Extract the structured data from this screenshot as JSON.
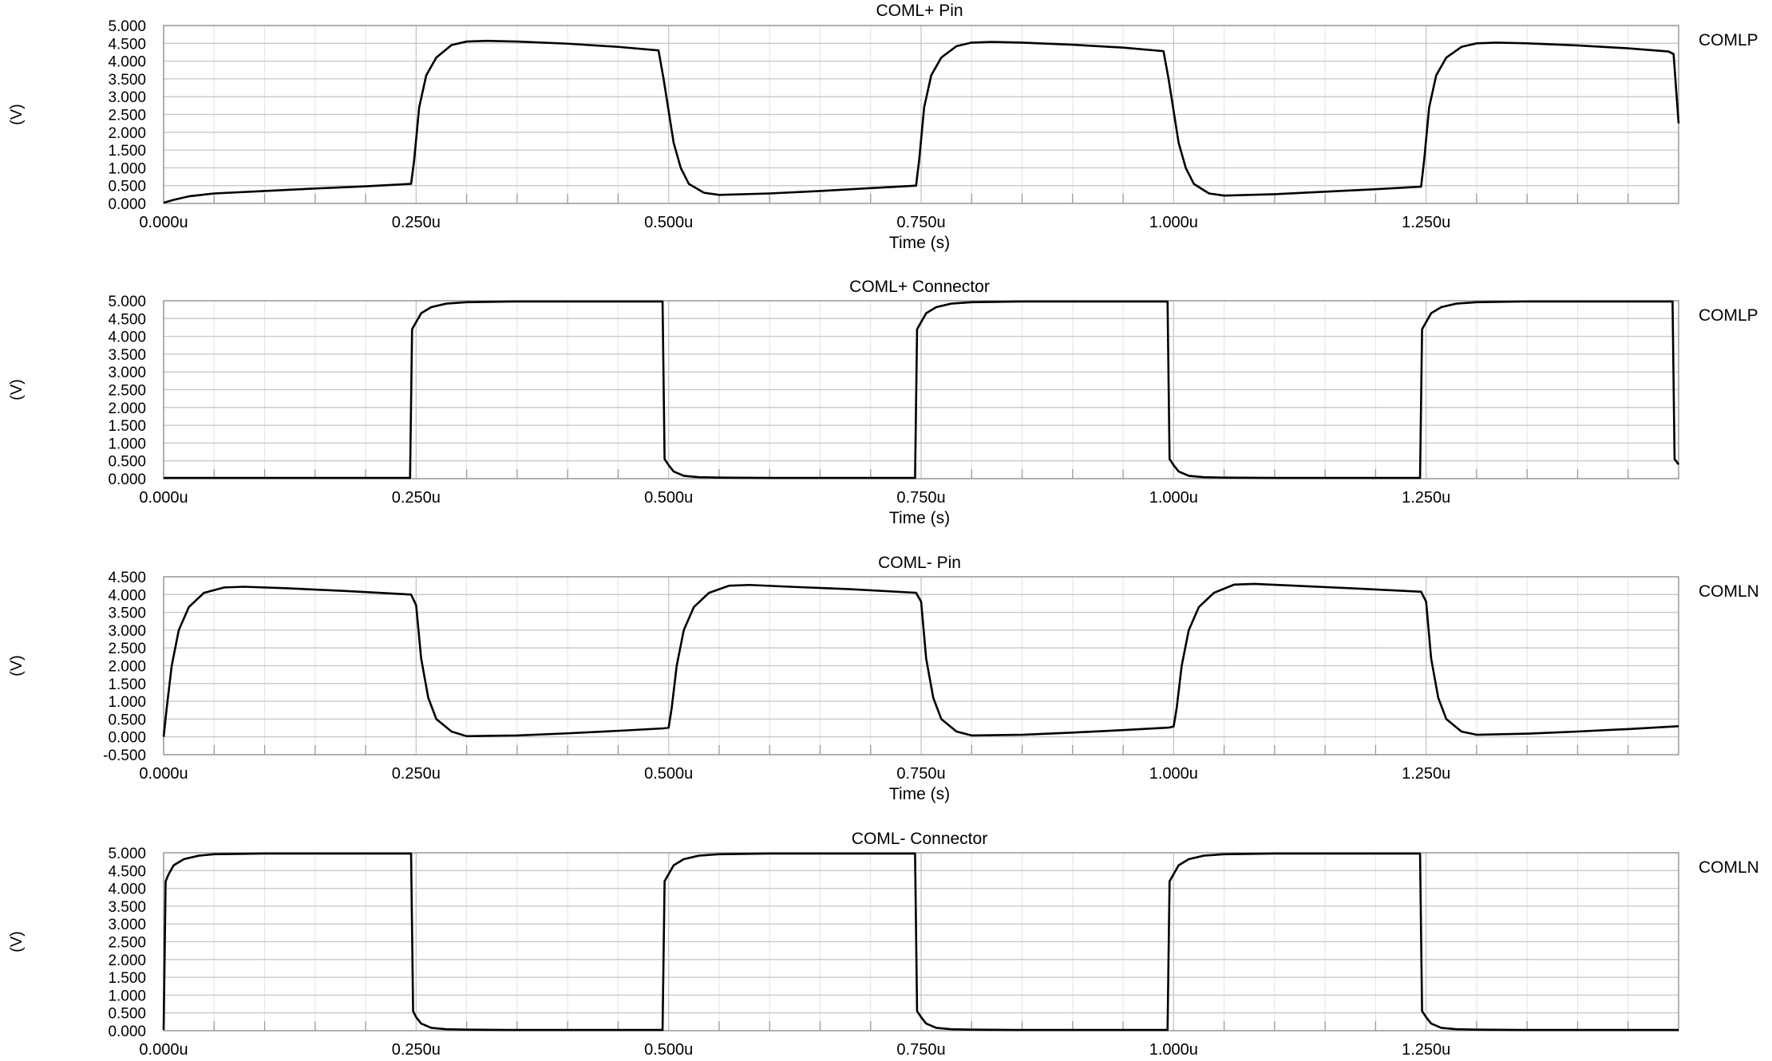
{
  "chart_data": [
    {
      "type": "line",
      "title": "COML+ Pin",
      "xlabel": "Time (s)",
      "ylabel": "(V)",
      "legend": "COMLP",
      "legend_placement": "right",
      "xlim": [
        0,
        1.5
      ],
      "ylim": [
        0,
        5
      ],
      "xticks": [
        0,
        0.25,
        0.5,
        0.75,
        1.0,
        1.25
      ],
      "xtick_labels": [
        "0.000u",
        "0.250u",
        "0.500u",
        "0.750u",
        "1.000u",
        "1.250u"
      ],
      "yticks": [
        0,
        0.5,
        1,
        1.5,
        2,
        2.5,
        3,
        3.5,
        4,
        4.5,
        5
      ],
      "ytick_labels": [
        "0.000",
        "0.500",
        "1.000",
        "1.500",
        "2.000",
        "2.500",
        "3.000",
        "3.500",
        "4.000",
        "4.500",
        "5.000"
      ],
      "grid": true,
      "series": [
        {
          "x": [
            0,
            0.01,
            0.025,
            0.05,
            0.1,
            0.15,
            0.2,
            0.245,
            0.248,
            0.253,
            0.26,
            0.27,
            0.285,
            0.3,
            0.32,
            0.35,
            0.4,
            0.45,
            0.49,
            0.495,
            0.5,
            0.505,
            0.512,
            0.52,
            0.535,
            0.55,
            0.6,
            0.65,
            0.7,
            0.745,
            0.748,
            0.753,
            0.76,
            0.77,
            0.785,
            0.8,
            0.82,
            0.85,
            0.9,
            0.95,
            0.99,
            0.995,
            1.0,
            1.005,
            1.012,
            1.02,
            1.035,
            1.05,
            1.1,
            1.15,
            1.2,
            1.245,
            1.248,
            1.253,
            1.26,
            1.27,
            1.285,
            1.3,
            1.32,
            1.35,
            1.4,
            1.45,
            1.49,
            1.495,
            1.5
          ],
          "y": [
            0.02,
            0.1,
            0.2,
            0.28,
            0.35,
            0.42,
            0.48,
            0.55,
            1.2,
            2.7,
            3.6,
            4.1,
            4.45,
            4.55,
            4.57,
            4.55,
            4.49,
            4.4,
            4.3,
            3.5,
            2.6,
            1.7,
            1.0,
            0.55,
            0.3,
            0.24,
            0.28,
            0.35,
            0.43,
            0.5,
            1.2,
            2.7,
            3.6,
            4.1,
            4.42,
            4.52,
            4.54,
            4.52,
            4.46,
            4.38,
            4.28,
            3.5,
            2.6,
            1.7,
            1.0,
            0.55,
            0.28,
            0.22,
            0.26,
            0.33,
            0.4,
            0.47,
            1.2,
            2.7,
            3.6,
            4.1,
            4.4,
            4.5,
            4.52,
            4.5,
            4.44,
            4.36,
            4.27,
            4.2,
            2.25
          ]
        }
      ]
    },
    {
      "type": "line",
      "title": "COML+ Connector",
      "xlabel": "Time (s)",
      "ylabel": "(V)",
      "legend": "COMLP",
      "legend_placement": "right",
      "xlim": [
        0,
        1.5
      ],
      "ylim": [
        0,
        5
      ],
      "xticks": [
        0,
        0.25,
        0.5,
        0.75,
        1.0,
        1.25
      ],
      "xtick_labels": [
        "0.000u",
        "0.250u",
        "0.500u",
        "0.750u",
        "1.000u",
        "1.250u"
      ],
      "yticks": [
        0,
        0.5,
        1,
        1.5,
        2,
        2.5,
        3,
        3.5,
        4,
        4.5,
        5
      ],
      "ytick_labels": [
        "0.000",
        "0.500",
        "1.000",
        "1.500",
        "2.000",
        "2.500",
        "3.000",
        "3.500",
        "4.000",
        "4.500",
        "5.000"
      ],
      "grid": true,
      "series": [
        {
          "x": [
            0,
            0.244,
            0.246,
            0.25,
            0.255,
            0.265,
            0.28,
            0.3,
            0.35,
            0.494,
            0.496,
            0.5,
            0.505,
            0.515,
            0.53,
            0.55,
            0.6,
            0.744,
            0.746,
            0.75,
            0.755,
            0.765,
            0.78,
            0.8,
            0.85,
            0.994,
            0.996,
            1.0,
            1.005,
            1.015,
            1.03,
            1.05,
            1.1,
            1.244,
            1.246,
            1.25,
            1.255,
            1.265,
            1.28,
            1.3,
            1.35,
            1.494,
            1.496,
            1.5
          ],
          "y": [
            0.02,
            0.02,
            4.2,
            4.4,
            4.65,
            4.82,
            4.92,
            4.96,
            4.98,
            4.98,
            0.55,
            0.38,
            0.2,
            0.08,
            0.04,
            0.03,
            0.02,
            0.02,
            4.2,
            4.4,
            4.65,
            4.82,
            4.92,
            4.96,
            4.98,
            4.98,
            0.55,
            0.38,
            0.2,
            0.08,
            0.04,
            0.03,
            0.02,
            0.02,
            4.2,
            4.4,
            4.65,
            4.82,
            4.92,
            4.96,
            4.98,
            4.98,
            0.55,
            0.4
          ]
        }
      ]
    },
    {
      "type": "line",
      "title": "COML- Pin",
      "xlabel": "Time (s)",
      "ylabel": "(V)",
      "legend": "COMLN",
      "legend_placement": "right",
      "xlim": [
        0,
        1.5
      ],
      "ylim": [
        -0.5,
        4.5
      ],
      "xticks": [
        0,
        0.25,
        0.5,
        0.75,
        1.0,
        1.25
      ],
      "xtick_labels": [
        "0.000u",
        "0.250u",
        "0.500u",
        "0.750u",
        "1.000u",
        "1.250u"
      ],
      "yticks": [
        -0.5,
        0,
        0.5,
        1,
        1.5,
        2,
        2.5,
        3,
        3.5,
        4,
        4.5
      ],
      "ytick_labels": [
        "-0.500",
        "0.000",
        "0.500",
        "1.000",
        "1.500",
        "2.000",
        "2.500",
        "3.000",
        "3.500",
        "4.000",
        "4.500"
      ],
      "grid": true,
      "series": [
        {
          "x": [
            0,
            0.003,
            0.008,
            0.015,
            0.025,
            0.04,
            0.06,
            0.08,
            0.12,
            0.18,
            0.245,
            0.25,
            0.255,
            0.262,
            0.27,
            0.285,
            0.3,
            0.35,
            0.4,
            0.45,
            0.495,
            0.5,
            0.503,
            0.508,
            0.515,
            0.525,
            0.54,
            0.56,
            0.58,
            0.62,
            0.68,
            0.745,
            0.75,
            0.755,
            0.762,
            0.77,
            0.785,
            0.8,
            0.85,
            0.9,
            0.95,
            0.995,
            1.0,
            1.003,
            1.008,
            1.015,
            1.025,
            1.04,
            1.06,
            1.08,
            1.12,
            1.18,
            1.245,
            1.25,
            1.255,
            1.262,
            1.27,
            1.285,
            1.3,
            1.35,
            1.4,
            1.45,
            1.5
          ],
          "y": [
            0.0,
            0.8,
            2.0,
            3.0,
            3.65,
            4.05,
            4.2,
            4.22,
            4.18,
            4.1,
            4.0,
            3.7,
            2.2,
            1.1,
            0.5,
            0.15,
            0.02,
            0.04,
            0.1,
            0.17,
            0.24,
            0.26,
            0.8,
            2.0,
            3.0,
            3.65,
            4.05,
            4.25,
            4.27,
            4.22,
            4.15,
            4.05,
            3.8,
            2.2,
            1.1,
            0.5,
            0.15,
            0.04,
            0.06,
            0.12,
            0.19,
            0.26,
            0.29,
            0.8,
            2.0,
            3.0,
            3.65,
            4.05,
            4.28,
            4.3,
            4.25,
            4.17,
            4.08,
            3.8,
            2.2,
            1.1,
            0.5,
            0.15,
            0.06,
            0.09,
            0.15,
            0.22,
            0.3
          ]
        }
      ]
    },
    {
      "type": "line",
      "title": "COML- Connector",
      "xlabel": "",
      "ylabel": "(V)",
      "legend": "COMLN",
      "legend_placement": "right",
      "xlim": [
        0,
        1.5
      ],
      "ylim": [
        0,
        5
      ],
      "xticks": [
        0,
        0.25,
        0.5,
        0.75,
        1.0,
        1.25
      ],
      "xtick_labels": [
        "0.000u",
        "0.250u",
        "0.500u",
        "0.750u",
        "1.000u",
        "1.250u"
      ],
      "yticks": [
        0,
        0.5,
        1,
        1.5,
        2,
        2.5,
        3,
        3.5,
        4,
        4.5,
        5
      ],
      "ytick_labels": [
        "0.000",
        "0.500",
        "1.000",
        "1.500",
        "2.000",
        "2.500",
        "3.000",
        "3.500",
        "4.000",
        "4.500",
        "5.000"
      ],
      "grid": true,
      "series": [
        {
          "x": [
            0,
            0.002,
            0.005,
            0.01,
            0.02,
            0.035,
            0.05,
            0.1,
            0.245,
            0.247,
            0.25,
            0.255,
            0.265,
            0.28,
            0.3,
            0.35,
            0.494,
            0.496,
            0.5,
            0.505,
            0.515,
            0.53,
            0.55,
            0.6,
            0.744,
            0.746,
            0.75,
            0.755,
            0.765,
            0.78,
            0.8,
            0.85,
            0.994,
            0.996,
            1.0,
            1.005,
            1.015,
            1.03,
            1.05,
            1.1,
            1.244,
            1.246,
            1.25,
            1.255,
            1.265,
            1.28,
            1.3,
            1.35,
            1.5
          ],
          "y": [
            0.02,
            4.2,
            4.4,
            4.65,
            4.82,
            4.92,
            4.96,
            4.98,
            4.98,
            0.55,
            0.38,
            0.2,
            0.08,
            0.04,
            0.03,
            0.02,
            0.02,
            4.2,
            4.4,
            4.65,
            4.82,
            4.92,
            4.96,
            4.98,
            4.98,
            0.55,
            0.38,
            0.2,
            0.08,
            0.04,
            0.03,
            0.02,
            0.02,
            4.2,
            4.4,
            4.65,
            4.82,
            4.92,
            4.96,
            4.98,
            4.98,
            0.55,
            0.38,
            0.2,
            0.08,
            0.04,
            0.03,
            0.02,
            0.02
          ]
        }
      ]
    }
  ]
}
